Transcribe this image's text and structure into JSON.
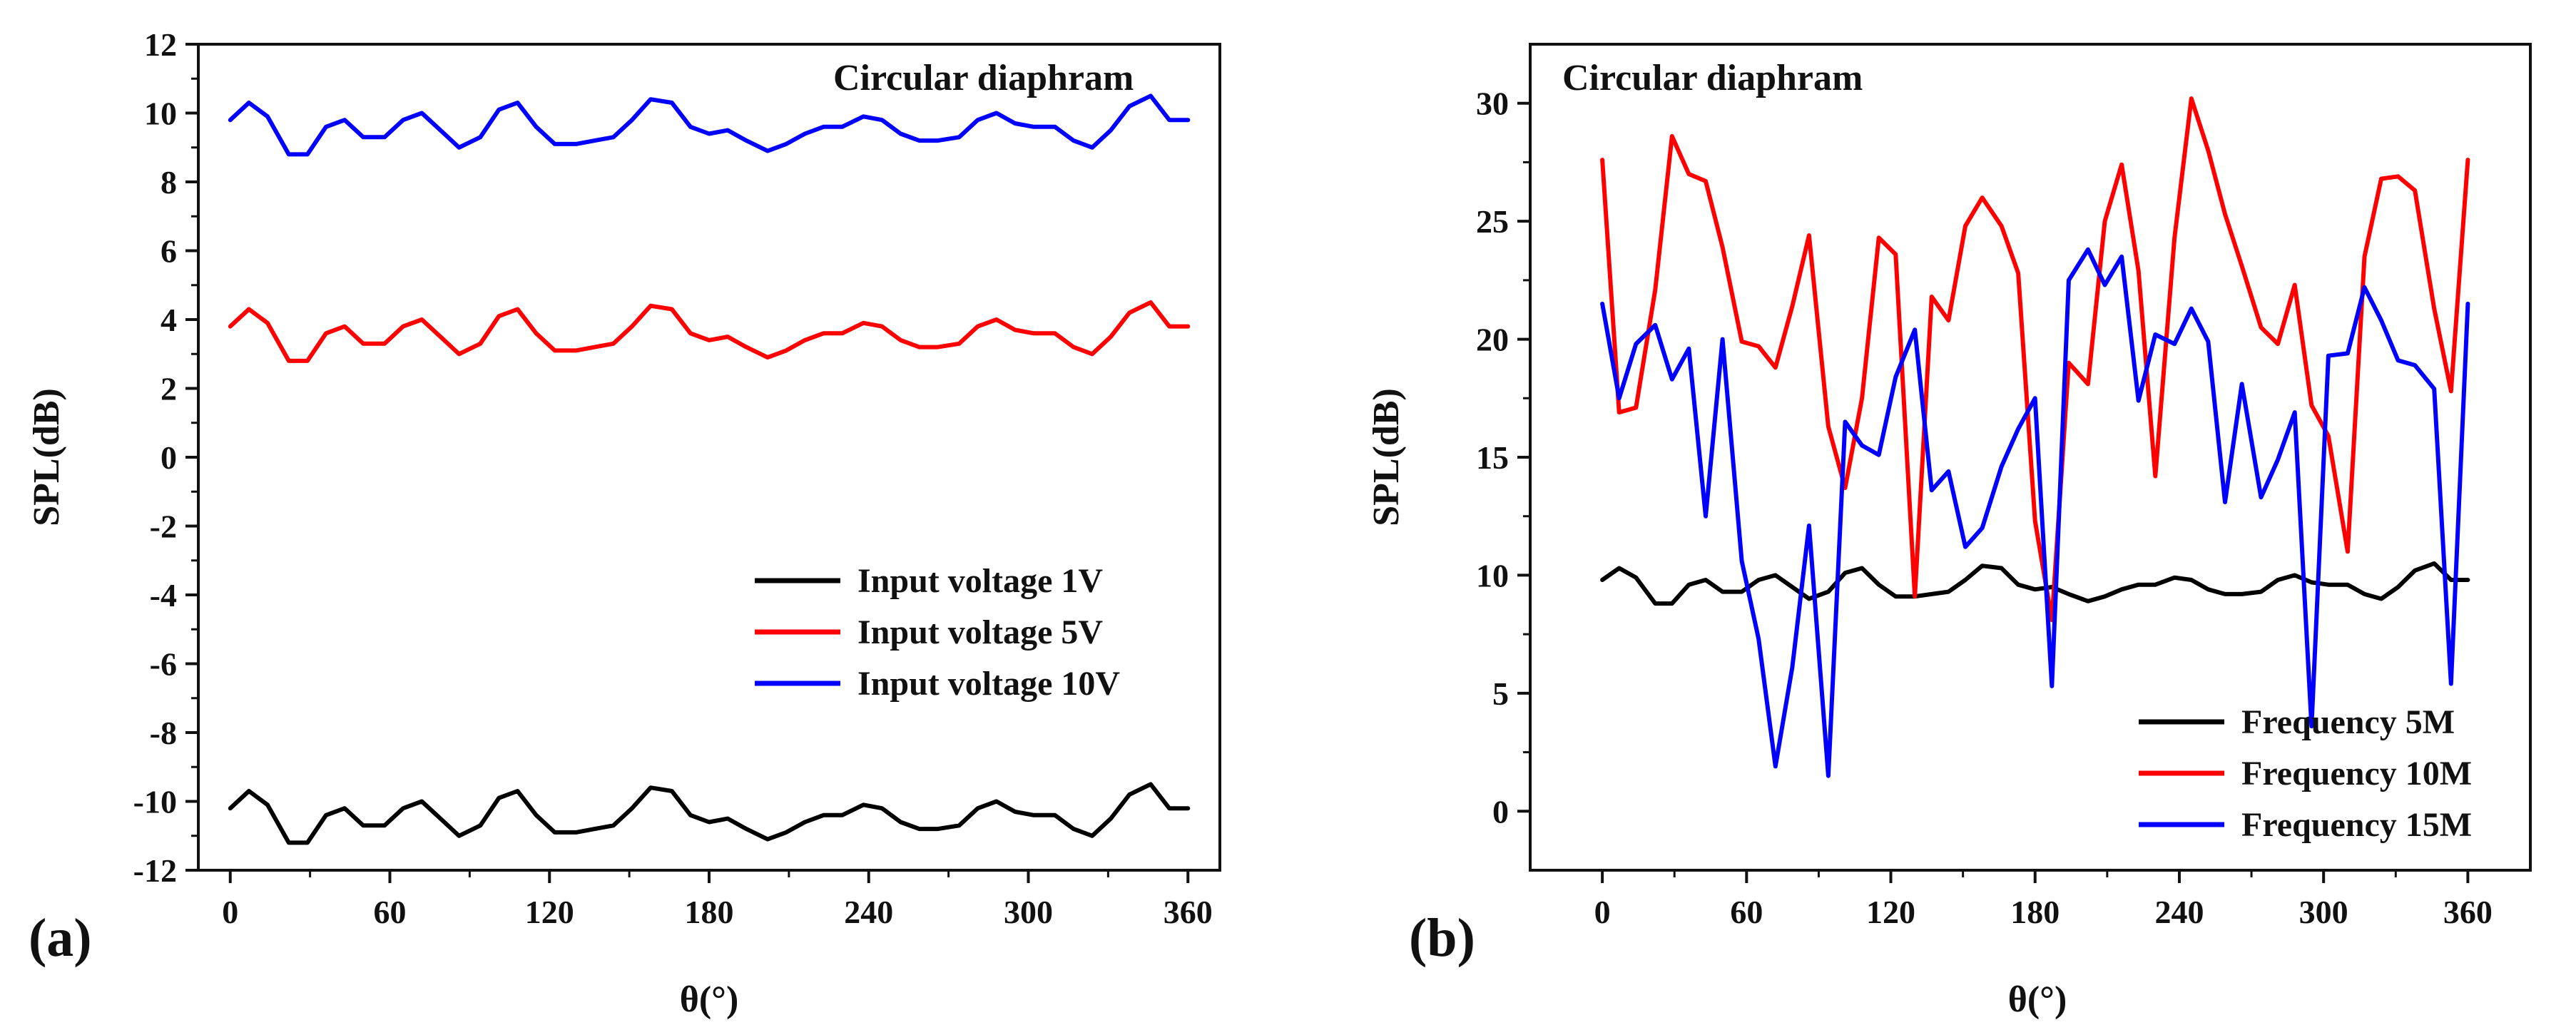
{
  "chart_data": [
    {
      "type": "line",
      "panel_label": "(a)",
      "title": "Circular diaphram",
      "xlabel": "θ(°)",
      "ylabel": "SPL(dB)",
      "xlim": [
        -12,
        372
      ],
      "ylim": [
        -12,
        12
      ],
      "xticks": [
        0,
        60,
        120,
        180,
        240,
        300,
        360
      ],
      "yticks": [
        -12,
        -10,
        -8,
        -6,
        -4,
        -2,
        0,
        2,
        4,
        6,
        8,
        10,
        12
      ],
      "legend_position": "center-right",
      "x": [
        0,
        7,
        14,
        22,
        29,
        36,
        43,
        50,
        58,
        65,
        72,
        79,
        86,
        94,
        101,
        108,
        115,
        122,
        130,
        137,
        144,
        151,
        158,
        166,
        173,
        180,
        187,
        194,
        202,
        209,
        216,
        223,
        230,
        238,
        245,
        252,
        259,
        266,
        274,
        281,
        288,
        295,
        302,
        310,
        317,
        324,
        331,
        338,
        346,
        353,
        360
      ],
      "series": [
        {
          "name": "Input voltage 1V",
          "color": "#000000",
          "values": [
            -10.2,
            -9.7,
            -10.1,
            -11.2,
            -11.2,
            -10.4,
            -10.2,
            -10.7,
            -10.7,
            -10.2,
            -10.0,
            -10.5,
            -11.0,
            -10.7,
            -9.9,
            -9.7,
            -10.4,
            -10.9,
            -10.9,
            -10.8,
            -10.7,
            -10.2,
            -9.6,
            -9.7,
            -10.4,
            -10.6,
            -10.5,
            -10.8,
            -11.1,
            -10.9,
            -10.6,
            -10.4,
            -10.4,
            -10.1,
            -10.2,
            -10.6,
            -10.8,
            -10.8,
            -10.7,
            -10.2,
            -10.0,
            -10.3,
            -10.4,
            -10.4,
            -10.8,
            -11.0,
            -10.5,
            -9.8,
            -9.5,
            -10.2,
            -10.2
          ]
        },
        {
          "name": "Input voltage 5V",
          "color": "#ff0000",
          "values": [
            3.8,
            4.3,
            3.9,
            2.8,
            2.8,
            3.6,
            3.8,
            3.3,
            3.3,
            3.8,
            4.0,
            3.5,
            3.0,
            3.3,
            4.1,
            4.3,
            3.6,
            3.1,
            3.1,
            3.2,
            3.3,
            3.8,
            4.4,
            4.3,
            3.6,
            3.4,
            3.5,
            3.2,
            2.9,
            3.1,
            3.4,
            3.6,
            3.6,
            3.9,
            3.8,
            3.4,
            3.2,
            3.2,
            3.3,
            3.8,
            4.0,
            3.7,
            3.6,
            3.6,
            3.2,
            3.0,
            3.5,
            4.2,
            4.5,
            3.8,
            3.8
          ]
        },
        {
          "name": "Input voltage 10V",
          "color": "#0000ff",
          "values": [
            9.8,
            10.3,
            9.9,
            8.8,
            8.8,
            9.6,
            9.8,
            9.3,
            9.3,
            9.8,
            10.0,
            9.5,
            9.0,
            9.3,
            10.1,
            10.3,
            9.6,
            9.1,
            9.1,
            9.2,
            9.3,
            9.8,
            10.4,
            10.3,
            9.6,
            9.4,
            9.5,
            9.2,
            8.9,
            9.1,
            9.4,
            9.6,
            9.6,
            9.9,
            9.8,
            9.4,
            9.2,
            9.2,
            9.3,
            9.8,
            10.0,
            9.7,
            9.6,
            9.6,
            9.2,
            9.0,
            9.5,
            10.2,
            10.5,
            9.8,
            9.8
          ]
        }
      ]
    },
    {
      "type": "line",
      "panel_label": "(b)",
      "title": "Circular diaphram",
      "xlabel": "θ(°)",
      "ylabel": "SPL(dB)",
      "xlim": [
        -30,
        386
      ],
      "ylim": [
        -2.5,
        32.5
      ],
      "xticks": [
        0,
        60,
        120,
        180,
        240,
        300,
        360
      ],
      "yticks": [
        0,
        5,
        10,
        15,
        20,
        25,
        30
      ],
      "legend_position": "bottom-right",
      "x": [
        0,
        7,
        14,
        22,
        29,
        36,
        43,
        50,
        58,
        65,
        72,
        79,
        86,
        94,
        101,
        108,
        115,
        122,
        130,
        137,
        144,
        151,
        158,
        166,
        173,
        180,
        187,
        194,
        202,
        209,
        216,
        223,
        230,
        238,
        245,
        252,
        259,
        266,
        274,
        281,
        288,
        295,
        302,
        310,
        317,
        324,
        331,
        338,
        346,
        353,
        360
      ],
      "series": [
        {
          "name": "Frequency 5M",
          "color": "#000000",
          "values": [
            9.8,
            10.3,
            9.9,
            8.8,
            8.8,
            9.6,
            9.8,
            9.3,
            9.3,
            9.8,
            10.0,
            9.5,
            9.0,
            9.3,
            10.1,
            10.3,
            9.6,
            9.1,
            9.1,
            9.2,
            9.3,
            9.8,
            10.4,
            10.3,
            9.6,
            9.4,
            9.5,
            9.2,
            8.9,
            9.1,
            9.4,
            9.6,
            9.6,
            9.9,
            9.8,
            9.4,
            9.2,
            9.2,
            9.3,
            9.8,
            10.0,
            9.7,
            9.6,
            9.6,
            9.2,
            9.0,
            9.5,
            10.2,
            10.5,
            9.8,
            9.8
          ]
        },
        {
          "name": "Frequency 10M",
          "color": "#ff0000",
          "values": [
            27.6,
            16.9,
            17.1,
            22.1,
            28.6,
            27.0,
            26.7,
            23.9,
            19.9,
            19.7,
            18.8,
            21.4,
            24.4,
            16.3,
            13.7,
            17.5,
            24.3,
            23.6,
            9.1,
            21.8,
            20.8,
            24.8,
            26.0,
            24.8,
            22.8,
            12.3,
            8.1,
            19.0,
            18.1,
            25.0,
            27.4,
            22.9,
            14.2,
            24.3,
            30.2,
            28.0,
            25.3,
            23.1,
            20.5,
            19.8,
            22.3,
            17.2,
            15.9,
            11.0,
            23.5,
            26.8,
            26.9,
            26.3,
            21.3,
            17.8,
            27.6
          ]
        },
        {
          "name": "Frequency 15M",
          "color": "#0000ff",
          "values": [
            21.5,
            17.5,
            19.8,
            20.6,
            18.3,
            19.6,
            12.5,
            20.0,
            10.6,
            7.3,
            1.9,
            6.1,
            12.1,
            1.5,
            16.5,
            15.5,
            15.1,
            18.4,
            20.4,
            13.6,
            14.4,
            11.2,
            12.0,
            14.6,
            16.2,
            17.5,
            5.3,
            22.5,
            23.8,
            22.3,
            23.5,
            17.4,
            20.2,
            19.8,
            21.3,
            19.9,
            13.1,
            18.1,
            13.3,
            14.9,
            16.9,
            3.6,
            19.3,
            19.4,
            22.2,
            20.8,
            19.1,
            18.9,
            17.9,
            5.4,
            21.5
          ]
        }
      ]
    }
  ]
}
